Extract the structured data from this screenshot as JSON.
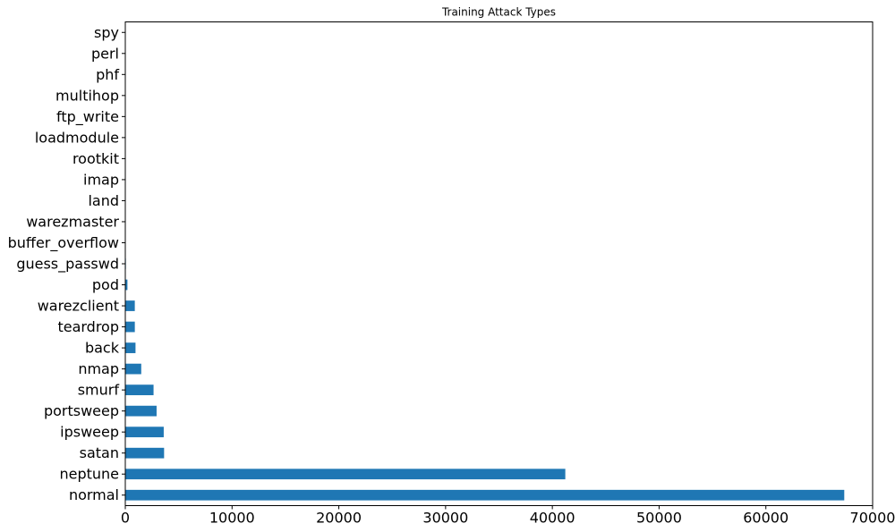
{
  "chart_data": {
    "type": "bar",
    "orientation": "horizontal",
    "title": "Training Attack Types",
    "xlabel": "",
    "ylabel": "",
    "bar_color": "#1f77b4",
    "xlim": [
      0,
      70000
    ],
    "xticks": [
      0,
      10000,
      20000,
      30000,
      40000,
      50000,
      60000,
      70000
    ],
    "categories": [
      "normal",
      "neptune",
      "satan",
      "ipsweep",
      "portsweep",
      "smurf",
      "nmap",
      "back",
      "teardrop",
      "warezclient",
      "pod",
      "guess_passwd",
      "buffer_overflow",
      "warezmaster",
      "land",
      "imap",
      "rootkit",
      "loadmodule",
      "ftp_write",
      "multihop",
      "phf",
      "perl",
      "spy"
    ],
    "values": [
      67343,
      41214,
      3633,
      3599,
      2931,
      2646,
      1493,
      956,
      892,
      890,
      201,
      53,
      30,
      20,
      18,
      11,
      10,
      9,
      8,
      7,
      4,
      3,
      2
    ],
    "grid": false,
    "legend": "none"
  }
}
